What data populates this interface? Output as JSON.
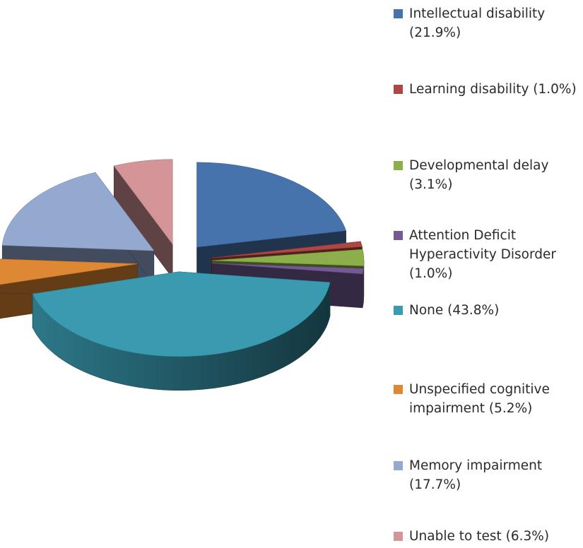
{
  "chart_data": {
    "type": "pie",
    "title": "",
    "legend_position": "right",
    "slices": [
      {
        "label": "Intellectual disability (21.9%)",
        "value": 21.9,
        "color": "#4673AC"
      },
      {
        "label": "Learning disability (1.0%)",
        "value": 1.0,
        "color": "#AE4643"
      },
      {
        "label": "Developmental delay (3.1%)",
        "value": 3.1,
        "color": "#8CAE4B"
      },
      {
        "label": "Attention Deficit Hyperactivity Disorder (1.0%)",
        "value": 1.0,
        "color": "#735A94"
      },
      {
        "label": "None (43.8%)",
        "value": 43.8,
        "color": "#3A9AB0"
      },
      {
        "label": "Unspecified cognitive impairment (5.2%)",
        "value": 5.2,
        "color": "#DE8734"
      },
      {
        "label": "Memory impairment (17.7%)",
        "value": 17.7,
        "color": "#94A9D0"
      },
      {
        "label": "Unable to test (6.3%)",
        "value": 6.3,
        "color": "#D39597"
      }
    ]
  }
}
